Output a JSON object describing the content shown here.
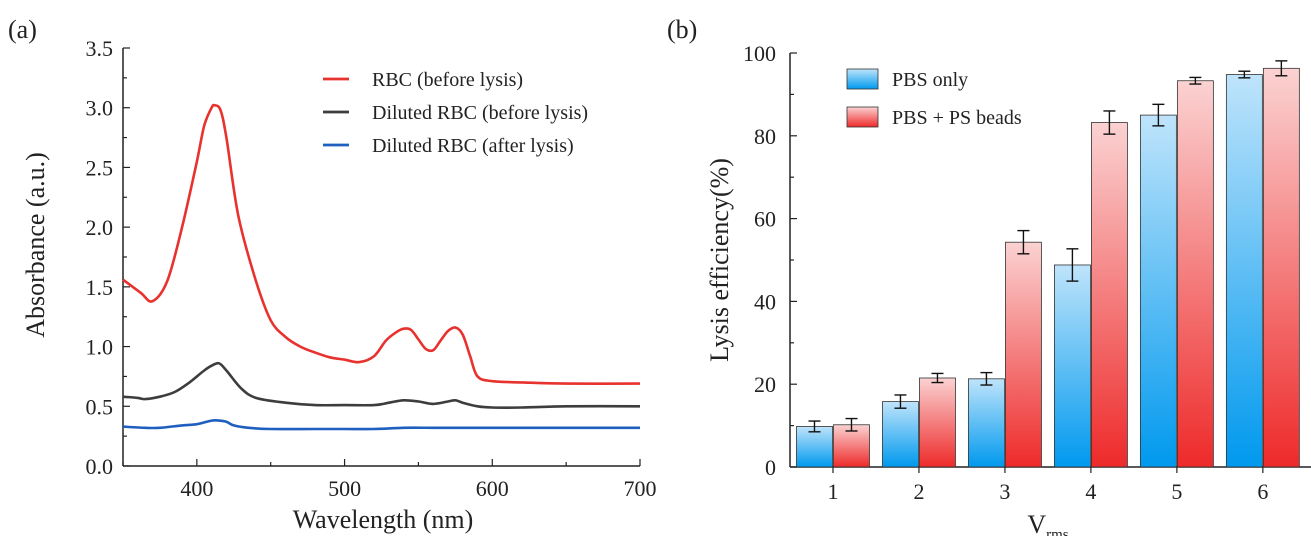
{
  "chart_data": [
    {
      "panel_label": "(a)",
      "type": "line",
      "xlabel": "Wavelength (nm)",
      "ylabel": "Absorbance (a.u.)",
      "xlim": [
        350,
        700
      ],
      "ylim": [
        0.0,
        3.5
      ],
      "xticks": [
        "400",
        "500",
        "600",
        "700"
      ],
      "yticks": [
        "0.0",
        "0.5",
        "1.0",
        "1.5",
        "2.0",
        "2.5",
        "3.0",
        "3.5"
      ],
      "legend_position": "top-right",
      "series": [
        {
          "name": "RBC (before lysis)",
          "color": "#e8322e",
          "x": [
            350,
            362,
            370,
            380,
            390,
            400,
            405,
            410,
            412,
            416,
            420,
            428,
            440,
            450,
            460,
            470,
            480,
            490,
            500,
            510,
            520,
            528,
            535,
            540,
            545,
            550,
            555,
            560,
            565,
            570,
            575,
            580,
            585,
            590,
            600,
            620,
            650,
            700
          ],
          "y": [
            1.56,
            1.45,
            1.38,
            1.55,
            2.0,
            2.55,
            2.85,
            3.0,
            3.02,
            2.98,
            2.75,
            2.1,
            1.55,
            1.22,
            1.08,
            1.0,
            0.95,
            0.91,
            0.89,
            0.87,
            0.92,
            1.05,
            1.12,
            1.15,
            1.14,
            1.06,
            0.98,
            0.97,
            1.05,
            1.13,
            1.16,
            1.1,
            0.92,
            0.75,
            0.71,
            0.7,
            0.69,
            0.69
          ]
        },
        {
          "name": "Diluted RBC (before lysis)",
          "color": "#3d3d3d",
          "x": [
            350,
            360,
            365,
            375,
            385,
            395,
            405,
            410,
            415,
            420,
            430,
            440,
            460,
            480,
            500,
            520,
            530,
            540,
            550,
            560,
            570,
            575,
            580,
            590,
            600,
            620,
            650,
            700
          ],
          "y": [
            0.58,
            0.57,
            0.56,
            0.58,
            0.62,
            0.7,
            0.8,
            0.84,
            0.86,
            0.8,
            0.65,
            0.57,
            0.53,
            0.51,
            0.51,
            0.51,
            0.53,
            0.55,
            0.54,
            0.52,
            0.54,
            0.55,
            0.53,
            0.5,
            0.49,
            0.49,
            0.5,
            0.5
          ]
        },
        {
          "name": "Diluted RBC (after lysis)",
          "color": "#1f5fbf",
          "x": [
            350,
            365,
            375,
            390,
            400,
            410,
            415,
            420,
            425,
            435,
            450,
            480,
            500,
            520,
            540,
            560,
            580,
            600,
            650,
            700
          ],
          "y": [
            0.33,
            0.32,
            0.32,
            0.34,
            0.35,
            0.38,
            0.38,
            0.37,
            0.34,
            0.32,
            0.31,
            0.31,
            0.31,
            0.31,
            0.32,
            0.32,
            0.32,
            0.32,
            0.32,
            0.32
          ]
        }
      ]
    },
    {
      "panel_label": "(b)",
      "type": "bar",
      "xlabel_main": "V",
      "xlabel_sub": "rms",
      "ylabel": "Lysis  efficiency(%)",
      "ylim": [
        0,
        100
      ],
      "yticks": [
        "0",
        "20",
        "40",
        "60",
        "80",
        "100"
      ],
      "categories": [
        "1",
        "2",
        "3",
        "4",
        "5",
        "6"
      ],
      "legend_position": "top-left",
      "series": [
        {
          "name": "PBS only",
          "color_top": "#bfe4fb",
          "color_bottom": "#0099ee",
          "values": [
            9.8,
            15.8,
            21.3,
            48.8,
            85.0,
            94.8
          ],
          "errors": [
            1.3,
            1.6,
            1.5,
            3.9,
            2.6,
            0.8
          ]
        },
        {
          "name": "PBS + PS beads",
          "color_top": "#fbd2d2",
          "color_bottom": "#ee2a2a",
          "values": [
            10.2,
            21.5,
            54.3,
            83.2,
            93.3,
            96.3
          ],
          "errors": [
            1.5,
            1.1,
            2.8,
            2.8,
            0.8,
            1.8
          ]
        }
      ]
    }
  ]
}
